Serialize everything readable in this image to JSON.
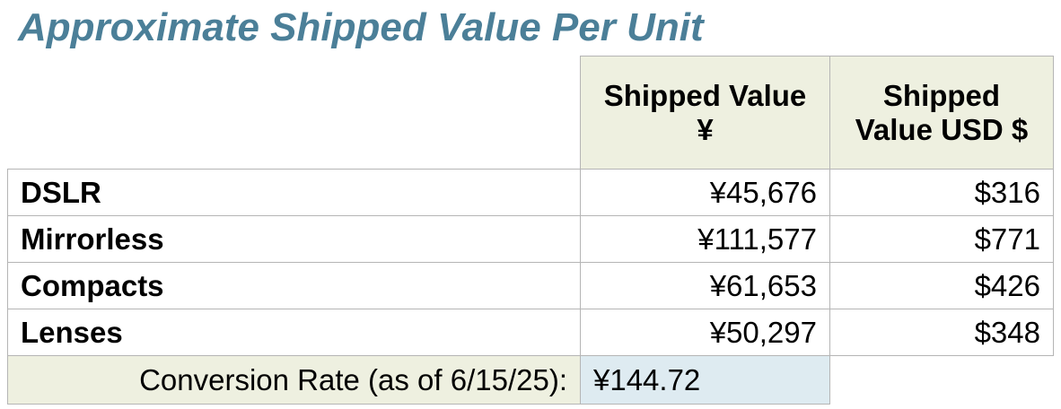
{
  "title": "Approximate Shipped Value Per Unit",
  "table": {
    "header": [
      "Shipped Value ¥",
      "Shipped Value USD $"
    ],
    "rows": [
      [
        "DSLR",
        "¥45,676",
        "$316"
      ],
      [
        "Mirrorless",
        "¥111,577",
        "$771"
      ],
      [
        "Compacts",
        "¥61,653",
        "$426"
      ],
      [
        "Lenses",
        "¥50,297",
        "$348"
      ]
    ]
  },
  "conversion": {
    "label": "Conversion Rate (as of 6/15/25):",
    "value": "¥144.72"
  }
}
